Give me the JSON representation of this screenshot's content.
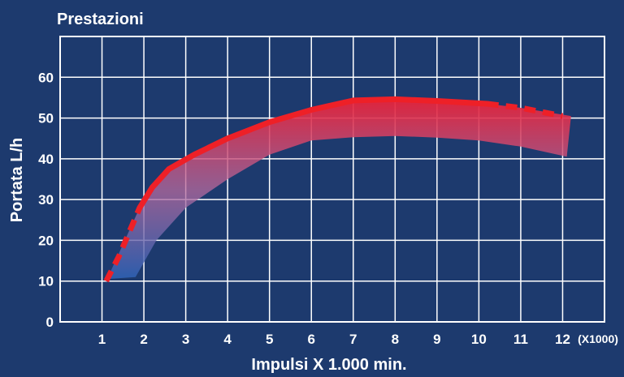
{
  "colors": {
    "background": "#1d3a6e",
    "grid": "#ffffff",
    "curve": "#ee2027",
    "band_top": "#e8233a",
    "band_bottom": "#2b63b8",
    "text": "#ffffff"
  },
  "chart_data": {
    "type": "area",
    "title": "Prestazioni",
    "xlabel": "Impulsi X 1.000 min.",
    "xunit": "(X1000)",
    "ylabel": "Portata L/h",
    "x_ticks": [
      1,
      2,
      3,
      4,
      5,
      6,
      7,
      8,
      9,
      10,
      11,
      12
    ],
    "y_ticks": [
      0,
      10,
      20,
      30,
      40,
      50,
      60
    ],
    "xlim": [
      0,
      13
    ],
    "ylim": [
      0,
      70
    ],
    "grid": true,
    "legend": "none",
    "series": [
      {
        "style": "solid",
        "points": [
          [
            1.9,
            28
          ],
          [
            2.2,
            33
          ],
          [
            2.6,
            37.5
          ],
          [
            3.2,
            41
          ],
          [
            4,
            45
          ],
          [
            5,
            49
          ],
          [
            6,
            52
          ],
          [
            7,
            54.3
          ],
          [
            8,
            54.6
          ],
          [
            9,
            54.2
          ],
          [
            10.2,
            53.5
          ]
        ]
      },
      {
        "style": "dashed",
        "points": [
          [
            1.1,
            10
          ],
          [
            1.4,
            16
          ],
          [
            1.9,
            28
          ]
        ]
      },
      {
        "style": "dashed",
        "points": [
          [
            10.2,
            53.5
          ],
          [
            11,
            52.5
          ],
          [
            12,
            50.5
          ]
        ]
      }
    ],
    "band": {
      "upper": [
        [
          1.1,
          10
        ],
        [
          1.9,
          28
        ],
        [
          2.6,
          37.5
        ],
        [
          3.2,
          41
        ],
        [
          4,
          45
        ],
        [
          5,
          49
        ],
        [
          6,
          52
        ],
        [
          7,
          54.3
        ],
        [
          8,
          54.6
        ],
        [
          9,
          54.2
        ],
        [
          10.2,
          53.5
        ],
        [
          11,
          52.5
        ],
        [
          12.2,
          50.5
        ]
      ],
      "lower": [
        [
          12.1,
          40.5
        ],
        [
          11,
          43
        ],
        [
          10,
          44.5
        ],
        [
          9,
          45.2
        ],
        [
          8,
          45.6
        ],
        [
          7,
          45.3
        ],
        [
          6,
          44.5
        ],
        [
          5,
          41
        ],
        [
          4,
          35
        ],
        [
          3,
          28
        ],
        [
          2.3,
          20
        ],
        [
          1.8,
          11
        ],
        [
          1.1,
          10.5
        ]
      ]
    }
  }
}
